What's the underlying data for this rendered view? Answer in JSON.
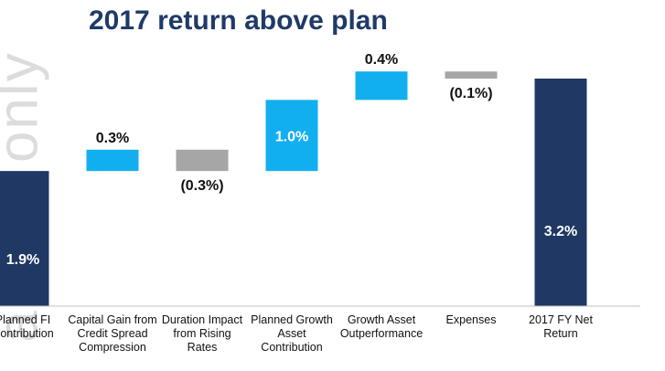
{
  "chart_data": {
    "type": "bar",
    "title": "2017 return above plan",
    "categories": [
      "Planned FI Contribution",
      "Capital Gain from Credit Spread Compression",
      "Duration Impact from Rising Rates",
      "Planned Growth Asset Contribution",
      "Growth Asset Outperformance",
      "Expenses",
      "2017 FY Net Return"
    ],
    "values": [
      1.9,
      0.3,
      -0.3,
      1.0,
      0.4,
      -0.1,
      3.2
    ],
    "data_labels": [
      "1.9%",
      "0.3%",
      "(0.3%)",
      "1.0%",
      "0.4%",
      "(0.1%)",
      "3.2%"
    ],
    "measure": [
      "total",
      "relative",
      "relative",
      "relative",
      "relative",
      "relative",
      "total"
    ],
    "ylim": [
      0,
      3.2
    ],
    "grid": false,
    "legend": "none",
    "colors": {
      "total": "#1f3864",
      "increase": "#12aff0",
      "decrease": "#a6a6a6",
      "label_dark": "#111111",
      "label_light": "#ffffff"
    }
  },
  "watermark": "al use only"
}
